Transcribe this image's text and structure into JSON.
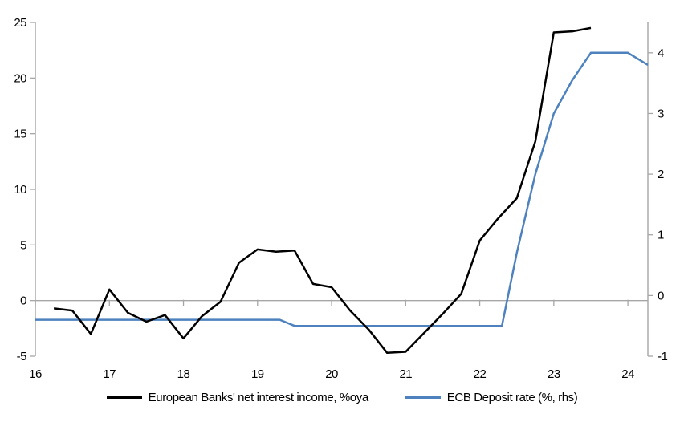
{
  "chart_data": {
    "type": "line",
    "title": "",
    "xlabel": "",
    "ylabel_left": "",
    "ylabel_right": "",
    "grid": "zero-line-only",
    "legend_position": "bottom-center",
    "axis_color": "#a6a6a6",
    "background": "#ffffff",
    "x_axis": {
      "min": 16,
      "max": 24.27,
      "tick_values": [
        16,
        17,
        18,
        19,
        20,
        21,
        22,
        23,
        24
      ],
      "tick_labels": [
        "16",
        "17",
        "18",
        "19",
        "20",
        "21",
        "22",
        "23",
        "24"
      ]
    },
    "y_left": {
      "min": -5,
      "max": 25,
      "tick_values": [
        -5,
        0,
        5,
        10,
        15,
        20,
        25
      ],
      "tick_labels": [
        "-5",
        "0",
        "5",
        "10",
        "15",
        "20",
        "25"
      ]
    },
    "y_right": {
      "min": -1,
      "max": 4.5,
      "tick_values": [
        -1,
        0,
        1,
        2,
        3,
        4
      ],
      "tick_labels": [
        "-1",
        "0",
        "1",
        "2",
        "3",
        "4"
      ]
    },
    "series": [
      {
        "name": "European Banks' net interest income, %oya",
        "axis": "left",
        "color": "#000000",
        "width": 2.5,
        "x": [
          16.25,
          16.5,
          16.75,
          17.0,
          17.25,
          17.5,
          17.75,
          18.0,
          18.25,
          18.5,
          18.75,
          19.0,
          19.25,
          19.5,
          19.75,
          20.0,
          20.25,
          20.5,
          20.75,
          21.0,
          21.25,
          21.5,
          21.75,
          22.0,
          22.25,
          22.5,
          22.75,
          23.0,
          23.25,
          23.5
        ],
        "y": [
          -0.7,
          -0.9,
          -3.0,
          1.0,
          -1.1,
          -1.9,
          -1.3,
          -3.4,
          -1.4,
          -0.1,
          3.4,
          4.6,
          4.4,
          4.5,
          1.5,
          1.2,
          -0.9,
          -2.6,
          -4.7,
          -4.6,
          -2.9,
          -1.2,
          0.6,
          5.4,
          7.4,
          9.2,
          14.3,
          24.1,
          24.2,
          24.5
        ]
      },
      {
        "name": "ECB Deposit rate (%, rhs)",
        "axis": "right",
        "color": "#4d82be",
        "width": 2.5,
        "x": [
          16.0,
          19.3,
          19.5,
          22.3,
          22.5,
          22.75,
          23.0,
          23.25,
          23.5,
          24.0,
          24.27
        ],
        "y": [
          -0.4,
          -0.4,
          -0.5,
          -0.5,
          0.7,
          2.0,
          3.0,
          3.55,
          4.0,
          4.0,
          3.8
        ]
      }
    ]
  }
}
